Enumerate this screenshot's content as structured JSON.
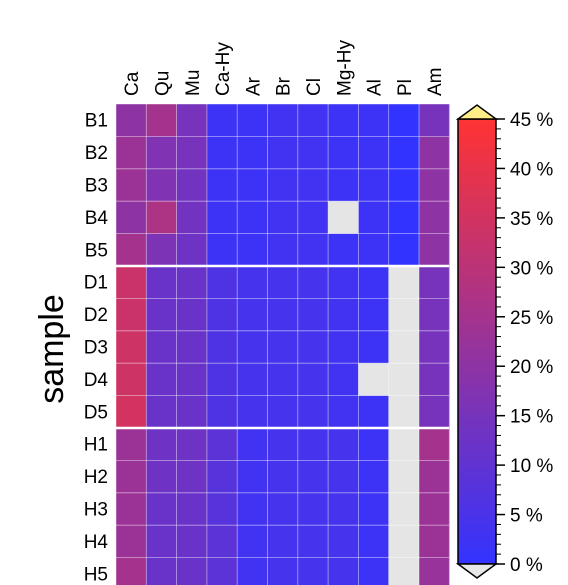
{
  "chart_data": {
    "type": "heatmap",
    "ylabel": "sample",
    "columns": [
      "Ca",
      "Qu",
      "Mu",
      "Ca-Hy",
      "Ar",
      "Br",
      "Cl",
      "Mg-Hy",
      "Al",
      "Pl",
      "Am"
    ],
    "rows": [
      "B1",
      "B2",
      "B3",
      "B4",
      "B5",
      "D1",
      "D2",
      "D3",
      "D4",
      "D5",
      "H1",
      "H2",
      "H3",
      "H4",
      "H5"
    ],
    "values": [
      [
        20,
        25,
        15,
        2,
        2,
        3,
        3,
        2,
        2,
        0,
        15
      ],
      [
        23,
        17,
        15,
        2,
        2,
        3,
        3,
        2,
        2,
        0,
        20
      ],
      [
        23,
        17,
        14,
        2,
        2,
        3,
        3,
        2,
        2,
        0,
        20
      ],
      [
        20,
        27,
        14,
        2,
        2,
        3,
        3,
        null,
        2,
        0,
        20
      ],
      [
        25,
        16,
        13,
        2,
        2,
        3,
        3,
        2,
        2,
        0,
        20
      ],
      [
        33,
        12,
        12,
        6,
        4,
        4,
        4,
        3,
        2,
        null,
        15
      ],
      [
        33,
        12,
        12,
        6,
        4,
        4,
        4,
        3,
        2,
        null,
        15
      ],
      [
        34,
        12,
        12,
        6,
        4,
        4,
        4,
        3,
        2,
        null,
        15
      ],
      [
        34,
        12,
        12,
        6,
        4,
        4,
        4,
        3,
        null,
        null,
        15
      ],
      [
        35,
        12,
        12,
        6,
        4,
        4,
        4,
        3,
        2,
        null,
        15
      ],
      [
        23,
        13,
        13,
        9,
        3,
        4,
        4,
        4,
        2,
        null,
        25
      ],
      [
        23,
        13,
        13,
        8,
        3,
        4,
        4,
        4,
        2,
        null,
        23
      ],
      [
        23,
        12,
        12,
        8,
        3,
        4,
        4,
        4,
        2,
        null,
        23
      ],
      [
        23,
        12,
        12,
        9,
        3,
        4,
        4,
        4,
        2,
        null,
        23
      ],
      [
        25,
        12,
        12,
        9,
        3,
        4,
        4,
        4,
        2,
        null,
        22
      ]
    ],
    "group_breaks_after_row": [
      "B5",
      "D5"
    ],
    "colorbar": {
      "min": 0,
      "max": 45,
      "ticks": [
        "0 %",
        "5 %",
        "10 %",
        "15 %",
        "20 %",
        "25 %",
        "30 %",
        "35 %",
        "40 %",
        "45 %"
      ],
      "low_color": "#3333ff",
      "high_color": "#ff3333",
      "over_color": "#ffee88",
      "under_color": "#e8e8e8",
      "missing_color": "#e5e5e5"
    }
  }
}
